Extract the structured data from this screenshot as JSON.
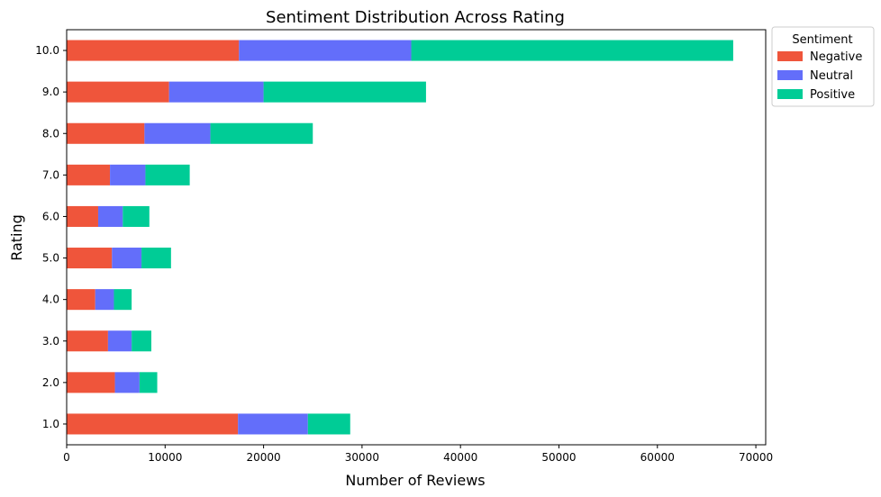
{
  "chart_data": {
    "type": "bar",
    "orientation": "horizontal",
    "stacked": true,
    "title": "Sentiment Distribution Across Rating",
    "xlabel": "Number of Reviews",
    "ylabel": "Rating",
    "categories": [
      "1.0",
      "2.0",
      "3.0",
      "4.0",
      "5.0",
      "6.0",
      "7.0",
      "8.0",
      "9.0",
      "10.0"
    ],
    "series": [
      {
        "name": "Negative",
        "color": "#EF553B",
        "values": [
          17400,
          4900,
          4200,
          2900,
          4600,
          3200,
          4400,
          7900,
          10400,
          17500
        ]
      },
      {
        "name": "Neutral",
        "color": "#636EFA",
        "values": [
          7100,
          2500,
          2400,
          1900,
          3000,
          2500,
          3600,
          6700,
          9600,
          17500
        ]
      },
      {
        "name": "Positive",
        "color": "#00CC96",
        "values": [
          4300,
          1800,
          2000,
          1800,
          3000,
          2700,
          4500,
          10400,
          16500,
          32700
        ]
      }
    ],
    "xlim": [
      0,
      71000
    ],
    "xticks": [
      0,
      10000,
      20000,
      30000,
      40000,
      50000,
      60000,
      70000
    ],
    "grid": false,
    "legend": {
      "title": "Sentiment",
      "placement": "outside-top-right"
    }
  }
}
